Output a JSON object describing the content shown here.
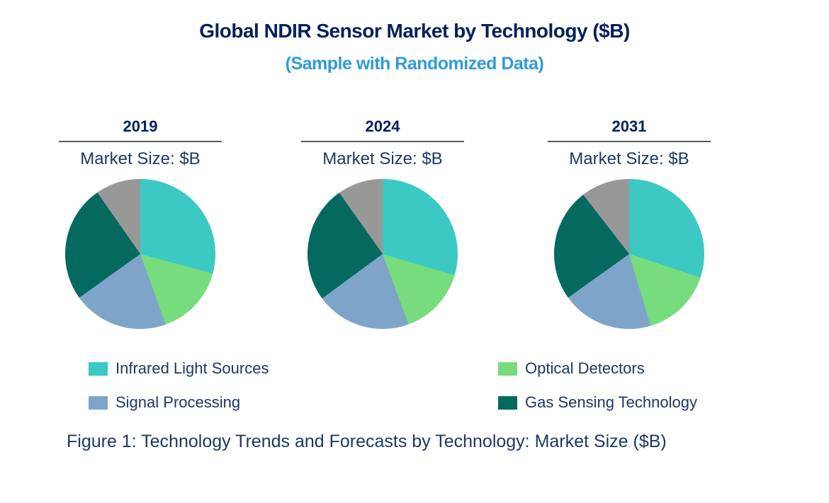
{
  "page": {
    "title": "Global NDIR Sensor Market by Technology ($B)",
    "subtitle": "(Sample with Randomized Data)",
    "caption": "Figure 1: Technology Trends and Forecasts by Technology: Market Size ($B)"
  },
  "colors": {
    "title_navy": "#002060",
    "body_navy": "#1F3864",
    "subtitle_blue": "#2E9BDA",
    "header_underline": "#595959",
    "infrared_light_sources": "#3CC8C3",
    "optical_detectors": "#76DC7E",
    "signal_processing": "#7EA5C9",
    "gas_sensing_technology": "#04695E",
    "unlabeled_gray": "#989898"
  },
  "legend": {
    "columns": [
      [
        {
          "label": "Infrared Light Sources",
          "color": "#3CC8C3"
        },
        {
          "label": "Signal Processing",
          "color": "#7EA5C9"
        }
      ],
      [
        {
          "label": "Optical Detectors",
          "color": "#76DC7E"
        },
        {
          "label": "Gas Sensing Technology",
          "color": "#04695E"
        }
      ]
    ]
  },
  "chart_data": [
    {
      "type": "pie",
      "year": "2019",
      "label": "Market Size: $B",
      "start_angle_deg": 0,
      "direction": "clockwise",
      "slices": [
        {
          "name": "Infrared Light Sources",
          "color": "#3CC8C3",
          "percent": 29.2
        },
        {
          "name": "Optical Detectors",
          "color": "#76DC7E",
          "percent": 15.3
        },
        {
          "name": "Signal Processing",
          "color": "#7EA5C9",
          "percent": 20.6
        },
        {
          "name": "Gas Sensing Technology",
          "color": "#04695E",
          "percent": 25.2
        },
        {
          "name": null,
          "color": "#989898",
          "percent": 9.7
        }
      ]
    },
    {
      "type": "pie",
      "year": "2024",
      "label": "Market Size: $B",
      "start_angle_deg": 0,
      "direction": "clockwise",
      "slices": [
        {
          "name": "Infrared Light Sources",
          "color": "#3CC8C3",
          "percent": 29.6
        },
        {
          "name": "Optical Detectors",
          "color": "#76DC7E",
          "percent": 14.8
        },
        {
          "name": "Signal Processing",
          "color": "#7EA5C9",
          "percent": 20.5
        },
        {
          "name": "Gas Sensing Technology",
          "color": "#04695E",
          "percent": 25.3
        },
        {
          "name": null,
          "color": "#989898",
          "percent": 9.8
        }
      ]
    },
    {
      "type": "pie",
      "year": "2031",
      "label": "Market Size: $B",
      "start_angle_deg": 0,
      "direction": "clockwise",
      "slices": [
        {
          "name": "Infrared Light Sources",
          "color": "#3CC8C3",
          "percent": 30.1
        },
        {
          "name": "Optical Detectors",
          "color": "#76DC7E",
          "percent": 15.3
        },
        {
          "name": "Signal Processing",
          "color": "#7EA5C9",
          "percent": 19.7
        },
        {
          "name": "Gas Sensing Technology",
          "color": "#04695E",
          "percent": 24.4
        },
        {
          "name": null,
          "color": "#989898",
          "percent": 10.5
        }
      ]
    }
  ]
}
